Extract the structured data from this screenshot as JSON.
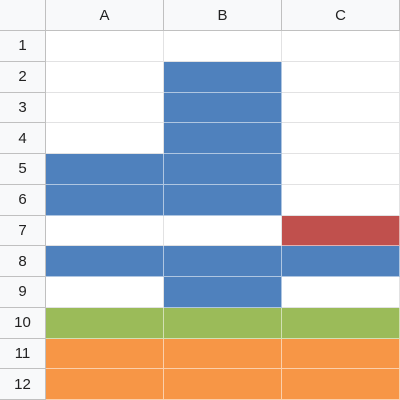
{
  "columns": [
    "A",
    "B",
    "C"
  ],
  "rows": [
    "1",
    "2",
    "3",
    "4",
    "5",
    "6",
    "7",
    "8",
    "9",
    "10",
    "11",
    "12"
  ],
  "colors": {
    "blue": "#4f81bd",
    "red": "#c0504d",
    "green": "#9bbb59",
    "orange": "#f79646",
    "empty": "#ffffff"
  },
  "cell_fills": [
    [
      "empty",
      "empty",
      "empty"
    ],
    [
      "empty",
      "blue",
      "empty"
    ],
    [
      "empty",
      "blue",
      "empty"
    ],
    [
      "empty",
      "blue",
      "empty"
    ],
    [
      "blue",
      "blue",
      "empty"
    ],
    [
      "blue",
      "blue",
      "empty"
    ],
    [
      "empty",
      "empty",
      "red"
    ],
    [
      "blue",
      "blue",
      "blue"
    ],
    [
      "empty",
      "blue",
      "empty"
    ],
    [
      "green",
      "green",
      "green"
    ],
    [
      "orange",
      "orange",
      "orange"
    ],
    [
      "orange",
      "orange",
      "orange"
    ]
  ]
}
